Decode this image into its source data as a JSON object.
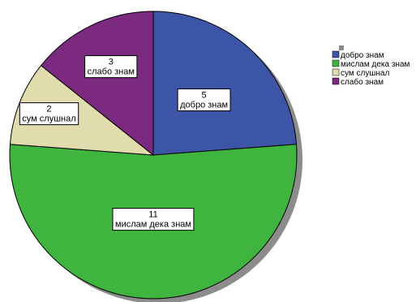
{
  "chart_data": {
    "type": "pie",
    "categories": [
      "добро знам",
      "мислам дека знам",
      "сум слушнал",
      "слабо знам"
    ],
    "values": [
      5,
      11,
      2,
      3
    ],
    "colors": [
      "#3c55a6",
      "#3fb43f",
      "#e0dcae",
      "#7b2a80"
    ],
    "data_labels": [
      {
        "value": "5",
        "category": "добро знам"
      },
      {
        "value": "11",
        "category": "мислам дека знам"
      },
      {
        "value": "2",
        "category": "сум слушнал"
      },
      {
        "value": "3",
        "category": "слабо знам"
      }
    ],
    "legend": {
      "placement": "right",
      "items": [
        "добро знам",
        "мислам дека знам",
        "сум слушнал",
        "слабо знам"
      ]
    },
    "title": "",
    "start": "12 o'clock",
    "direction": "clockwise"
  }
}
